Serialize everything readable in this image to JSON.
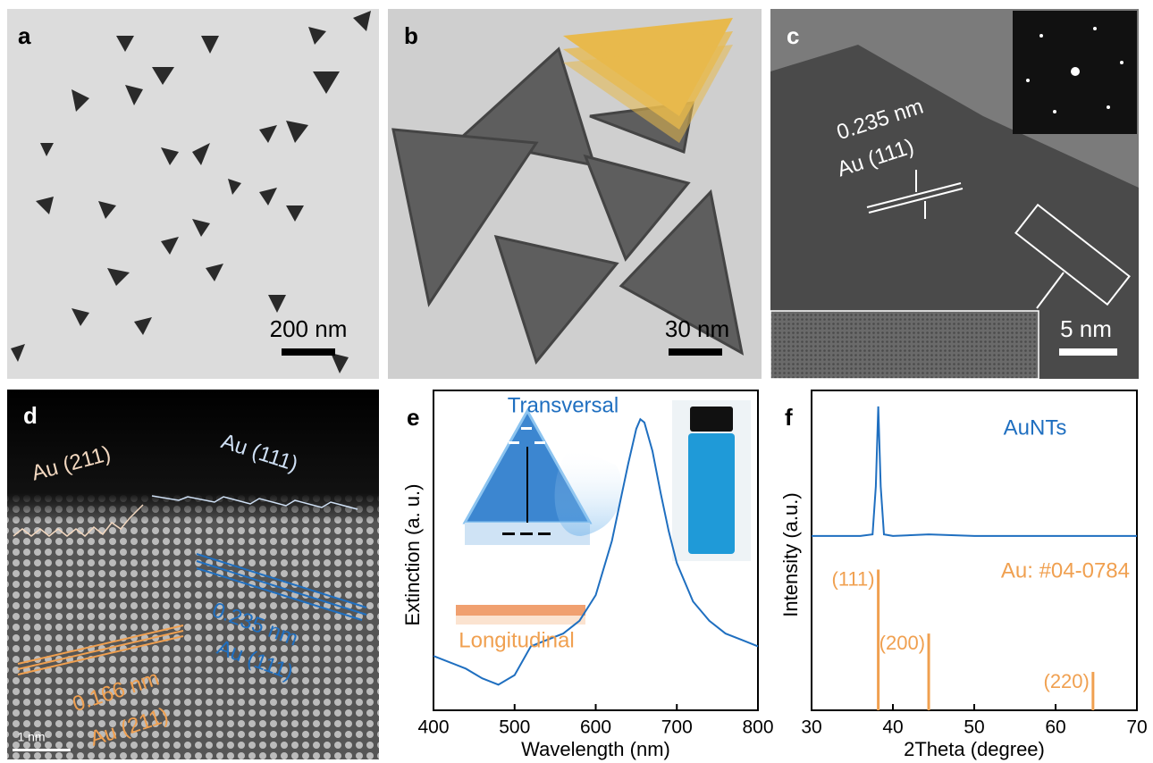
{
  "panels": [
    {
      "label": "a",
      "scale_bar": "200 nm"
    },
    {
      "label": "b",
      "scale_bar": "30 nm"
    },
    {
      "label": "c",
      "scale_bar": "5 nm",
      "annotations": [
        "0.235 nm",
        "Au (111)"
      ]
    },
    {
      "label": "d",
      "scale_bar": "1 nm",
      "annotations": [
        "Au (211)",
        "Au (111)",
        "0.235 nm",
        "Au (111)",
        "0.166 nm",
        "Au (211)"
      ]
    }
  ],
  "chart_data": [
    {
      "type": "line",
      "panel": "e",
      "x_label": "Wavelength (nm)",
      "y_label": "Extinction (a. u.)",
      "annotations": [
        "Transversal",
        "Longitudinal"
      ],
      "color": "#1f6fc0",
      "x": [
        400,
        420,
        440,
        460,
        480,
        500,
        520,
        540,
        560,
        580,
        600,
        620,
        640,
        650,
        655,
        660,
        670,
        680,
        690,
        700,
        720,
        740,
        760,
        780,
        800
      ],
      "values": [
        0.17,
        0.15,
        0.13,
        0.1,
        0.08,
        0.11,
        0.2,
        0.22,
        0.24,
        0.28,
        0.36,
        0.53,
        0.77,
        0.88,
        0.91,
        0.9,
        0.81,
        0.68,
        0.56,
        0.46,
        0.34,
        0.28,
        0.24,
        0.22,
        0.2
      ],
      "xlim": [
        400,
        800
      ],
      "xticks": [
        400,
        500,
        600,
        700,
        800
      ],
      "ylim": [
        0,
        1
      ]
    },
    {
      "type": "line",
      "panel": "f",
      "x_label": "2Theta (degree)",
      "y_label": "Intensity (a.u.)",
      "series": [
        {
          "name": "AuNTs",
          "color": "#1f6fc0",
          "x": [
            30,
            36,
            37.5,
            37.9,
            38.2,
            38.5,
            38.9,
            40,
            44.4,
            50,
            60,
            70
          ],
          "values": [
            0.545,
            0.545,
            0.55,
            0.7,
            0.95,
            0.7,
            0.55,
            0.545,
            0.55,
            0.545,
            0.545,
            0.545
          ]
        },
        {
          "name": "Au: #04-0784",
          "color": "#f0a050",
          "style": "stick",
          "x": [
            38.2,
            44.4,
            64.6
          ],
          "values": [
            0.44,
            0.24,
            0.12
          ],
          "labels": [
            "(111)",
            "(200)",
            "(220)"
          ]
        }
      ],
      "xlim": [
        30,
        70
      ],
      "xticks": [
        30,
        40,
        50,
        60,
        70
      ],
      "ylim": [
        0,
        1
      ]
    }
  ]
}
